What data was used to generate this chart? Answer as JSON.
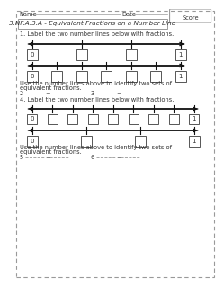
{
  "title": "3.NF.A.3.A - Equivalent Fractions on a Number Line",
  "name_label": "Name",
  "date_label": "Date",
  "score_label": "Score",
  "section1_label": "1. Label the two number lines below with fractions.",
  "section2_label": "4. Label the two number lines below with fractions.",
  "below_text1": "Use the number lines above to identify two sets of",
  "below_text2": "equivalent fractions.",
  "bg_color": "#ffffff",
  "border_color": "#999999",
  "line_color": "#111111",
  "box_color": "#ffffff",
  "box_edge": "#555555",
  "text_color": "#333333",
  "font_size": 4.8,
  "title_font_size": 5.2,
  "section1_n1": 4,
  "section1_n2": 7,
  "section2_n1": 9,
  "section2_n2": 4
}
